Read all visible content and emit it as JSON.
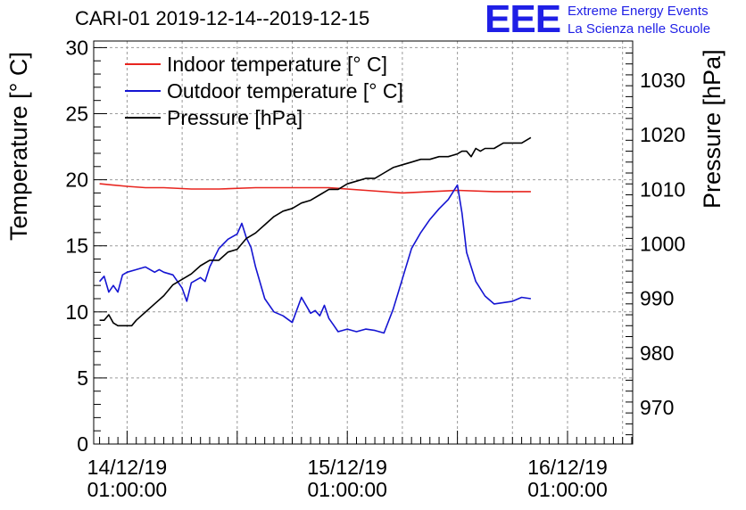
{
  "title": "CARI-01 2019-12-14--2019-12-15",
  "logo": {
    "mark": "EEE",
    "line1": "Extreme Energy Events",
    "line2": "La Scienza nelle Scuole"
  },
  "colors": {
    "indoor": "#e8251f",
    "outdoor": "#1414d2",
    "pressure": "#000000",
    "grid": "#9a9a9a"
  },
  "chart_data": {
    "type": "line",
    "title": "CARI-01 2019-12-14--2019-12-15",
    "x_unit": "hours since 14/12/19 01:00:00",
    "xlim": [
      -3.64,
      55.1
    ],
    "x_ticks": [
      {
        "value": 0,
        "line1": "14/12/19",
        "line2": "01:00:00"
      },
      {
        "value": 24,
        "line1": "15/12/19",
        "line2": "01:00:00"
      },
      {
        "value": 48,
        "line1": "16/12/19",
        "line2": "01:00:00"
      }
    ],
    "y_left": {
      "label": "Temperature [° C]",
      "lim": [
        0,
        30.5
      ],
      "ticks": [
        0,
        5,
        10,
        15,
        20,
        25,
        30
      ]
    },
    "y_right": {
      "label": "Pressure [hPa]",
      "lim": [
        963.3,
        1037.2
      ],
      "ticks": [
        970,
        980,
        990,
        1000,
        1010,
        1020,
        1030
      ]
    },
    "legend_position": "top-left",
    "series": [
      {
        "name": "Indoor temperature [° C]",
        "axis": "left",
        "color": "#e8251f",
        "x": [
          -3,
          0,
          2,
          4,
          7,
          10,
          14,
          18,
          22,
          26,
          30,
          33,
          36,
          40,
          43,
          44
        ],
        "y": [
          19.7,
          19.5,
          19.4,
          19.4,
          19.3,
          19.3,
          19.4,
          19.4,
          19.4,
          19.2,
          19.0,
          19.1,
          19.2,
          19.1,
          19.1,
          19.1
        ]
      },
      {
        "name": "Outdoor temperature [° C]",
        "axis": "left",
        "color": "#1414d2",
        "x": [
          -3,
          -2.5,
          -2,
          -1.5,
          -1,
          -0.5,
          0,
          1,
          2,
          3,
          3.5,
          4,
          5,
          6,
          6.5,
          7,
          8,
          8.5,
          9,
          10,
          11,
          12,
          12.5,
          13,
          13.5,
          14,
          15,
          16,
          17,
          18,
          19,
          20,
          20.5,
          21,
          21.5,
          22,
          22.5,
          23,
          24,
          25,
          26,
          27,
          28,
          29,
          30,
          31,
          32,
          33,
          34,
          35,
          36,
          36.5,
          37,
          38,
          39,
          40,
          41,
          42,
          43,
          44
        ],
        "y": [
          12.3,
          12.7,
          11.5,
          12.0,
          11.5,
          12.8,
          13.0,
          13.2,
          13.4,
          13.0,
          13.2,
          13.0,
          12.8,
          11.8,
          10.8,
          12.2,
          12.6,
          12.3,
          13.4,
          14.8,
          15.5,
          15.9,
          16.7,
          15.6,
          14.9,
          13.4,
          11.0,
          10.0,
          9.7,
          9.2,
          11.1,
          9.9,
          10.1,
          9.7,
          10.5,
          9.5,
          9.0,
          8.5,
          8.7,
          8.5,
          8.7,
          8.6,
          8.4,
          10.2,
          12.5,
          14.8,
          16.0,
          17.0,
          17.8,
          18.5,
          19.6,
          17.5,
          14.5,
          12.3,
          11.2,
          10.6,
          10.7,
          10.8,
          11.1,
          11.0
        ]
      },
      {
        "name": "Pressure [hPa]",
        "axis": "right",
        "color": "#000000",
        "x": [
          -3,
          -2.5,
          -2,
          -1.5,
          -1,
          0.5,
          1,
          2,
          3,
          4,
          5,
          6,
          7,
          8,
          9,
          10,
          11,
          12,
          13,
          14,
          15,
          16,
          17,
          18,
          19,
          20,
          21,
          22,
          23,
          24,
          25,
          26,
          27,
          28,
          29,
          30,
          31,
          32,
          33,
          34,
          35,
          36,
          36.5,
          37,
          37.5,
          38,
          38.5,
          39,
          40,
          41,
          42,
          43,
          44
        ],
        "y": [
          986.0,
          986.0,
          987.0,
          985.5,
          985.0,
          985.0,
          986.0,
          987.5,
          989.0,
          990.5,
          992.5,
          993.5,
          994.5,
          996.0,
          997.0,
          997.0,
          998.5,
          999.0,
          1001.0,
          1002.0,
          1003.5,
          1005.0,
          1006.0,
          1006.5,
          1007.5,
          1008.0,
          1009.0,
          1010.0,
          1010.0,
          1011.0,
          1011.5,
          1012.0,
          1012.0,
          1013.0,
          1014.0,
          1014.5,
          1015.0,
          1015.5,
          1015.5,
          1016.0,
          1016.0,
          1016.5,
          1017.0,
          1017.0,
          1016.0,
          1017.5,
          1017.0,
          1017.5,
          1017.5,
          1018.5,
          1018.5,
          1018.5,
          1019.5
        ]
      }
    ]
  }
}
